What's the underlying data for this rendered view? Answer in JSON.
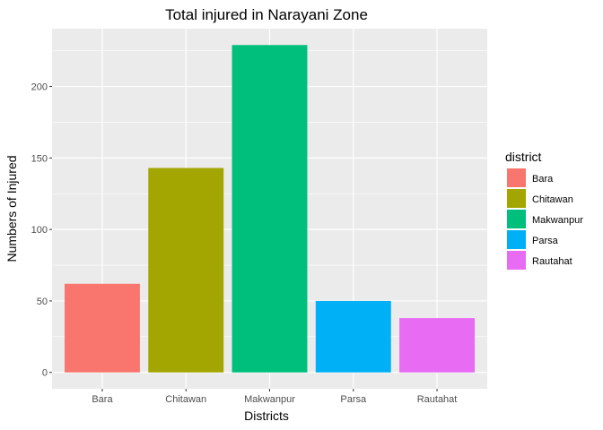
{
  "chart_data": {
    "type": "bar",
    "title": "Total injured in Narayani Zone",
    "xlabel": "Districts",
    "ylabel": "Numbers of Injured",
    "categories": [
      "Bara",
      "Chitawan",
      "Makwanpur",
      "Parsa",
      "Rautahat"
    ],
    "values": [
      62,
      143,
      229,
      50,
      38
    ],
    "colors": [
      "#F8766D",
      "#A3A500",
      "#00BF7D",
      "#00B0F6",
      "#E76BF3"
    ],
    "ylim": [
      -11.45,
      240.45
    ],
    "yticks": [
      0,
      50,
      100,
      150,
      200
    ],
    "grid": true,
    "legend": {
      "title": "district",
      "position": "right",
      "entries": [
        "Bara",
        "Chitawan",
        "Makwanpur",
        "Parsa",
        "Rautahat"
      ]
    }
  }
}
